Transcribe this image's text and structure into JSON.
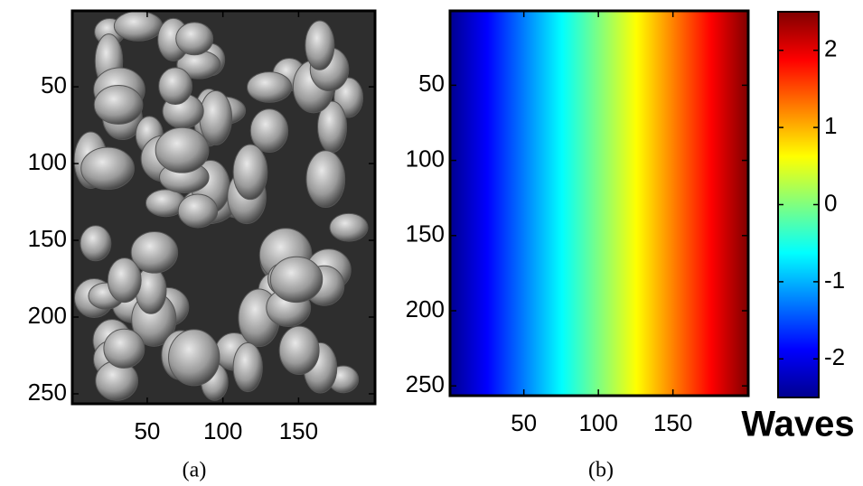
{
  "chart_data": [
    {
      "type": "image",
      "caption": "(a)",
      "xlim": [
        0.5,
        200.5
      ],
      "ylim": [
        0.5,
        256.5
      ],
      "y_reversed": true,
      "xticks": [
        50,
        100,
        150
      ],
      "yticks": [
        50,
        100,
        150,
        200,
        250
      ]
    },
    {
      "type": "heatmap",
      "caption": "(b)",
      "xlim": [
        0.5,
        200.5
      ],
      "ylim": [
        0.5,
        256.5
      ],
      "y_reversed": true,
      "xticks": [
        50,
        100,
        150
      ],
      "yticks": [
        50,
        100,
        150,
        200,
        250
      ],
      "colormap": "jet",
      "clim": [
        -2.5,
        2.5
      ],
      "cticks": [
        -2,
        -1,
        0,
        1,
        2
      ],
      "colorbar_label": "Waves"
    }
  ]
}
